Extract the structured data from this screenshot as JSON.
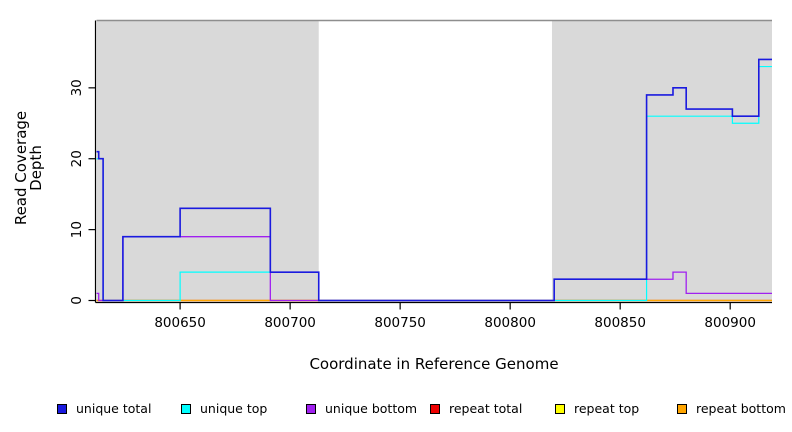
{
  "page": {
    "background": "#FFFFFF"
  },
  "chart_data": {
    "type": "line",
    "subtype": "step-post",
    "title": "",
    "xlabel": "Coordinate in Reference Genome",
    "ylabel": "Read Coverage Depth",
    "xlim": [
      800612,
      800919
    ],
    "ylim": [
      0,
      39.5
    ],
    "x_ticks": [
      800650,
      800700,
      800750,
      800800,
      800850,
      800900
    ],
    "y_ticks": [
      0,
      10,
      20,
      30
    ],
    "grid": false,
    "legend_position": "bottom",
    "shade_color": "#D9D9D9",
    "top_border_color": "#8E8E8E",
    "axis_color": "#000000",
    "shaded_regions": [
      {
        "x0": 800612,
        "x1": 800713
      },
      {
        "x0": 800819,
        "x1": 800919
      }
    ],
    "series": [
      {
        "name": "unique total",
        "color": "#1A1ADF",
        "width": 1.6,
        "steps": [
          [
            800612,
            21
          ],
          [
            800613,
            20
          ],
          [
            800615,
            0
          ],
          [
            800624,
            9
          ],
          [
            800650,
            13
          ],
          [
            800691,
            4
          ],
          [
            800713,
            0
          ],
          [
            800820,
            3
          ],
          [
            800862,
            29
          ],
          [
            800874,
            30
          ],
          [
            800880,
            27
          ],
          [
            800901,
            26
          ],
          [
            800913,
            34
          ]
        ]
      },
      {
        "name": "unique top",
        "color": "#00FFFF",
        "width": 1.2,
        "steps": [
          [
            800612,
            20
          ],
          [
            800615,
            0
          ],
          [
            800650,
            4
          ],
          [
            800713,
            0
          ],
          [
            800862,
            26
          ],
          [
            800901,
            25
          ],
          [
            800913,
            33
          ]
        ]
      },
      {
        "name": "unique bottom",
        "color": "#A020F0",
        "width": 1.3,
        "steps": [
          [
            800612,
            1
          ],
          [
            800613,
            0
          ],
          [
            800624,
            9
          ],
          [
            800691,
            0
          ],
          [
            800820,
            3
          ],
          [
            800874,
            4
          ],
          [
            800880,
            1
          ]
        ]
      },
      {
        "name": "repeat total",
        "color": "#EE0000",
        "width": 1.2,
        "steps": [
          [
            800612,
            0
          ]
        ]
      },
      {
        "name": "repeat top",
        "color": "#FFFF00",
        "width": 1.2,
        "steps": [
          [
            800612,
            0
          ]
        ]
      },
      {
        "name": "repeat bottom",
        "color": "#FFA500",
        "width": 1.2,
        "steps": [
          [
            800612,
            0
          ]
        ]
      }
    ],
    "draw_order": [
      "repeat top",
      "repeat total",
      "repeat bottom",
      "unique top",
      "unique bottom",
      "unique total"
    ]
  }
}
